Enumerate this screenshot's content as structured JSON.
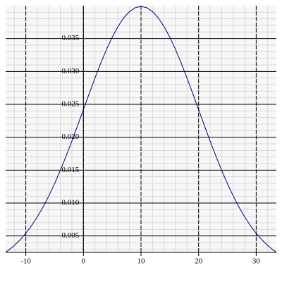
{
  "chart_data": {
    "type": "line",
    "x": [
      -13.5,
      -13,
      -12,
      -11,
      -10,
      -9,
      -8,
      -7,
      -6,
      -5,
      -4,
      -3,
      -2,
      -1,
      0,
      1,
      2,
      3,
      4,
      5,
      6,
      7,
      8,
      9,
      10,
      11,
      12,
      13,
      14,
      15,
      16,
      17,
      18,
      19,
      20,
      21,
      22,
      23,
      24,
      25,
      26,
      27,
      28,
      29,
      30,
      31,
      32,
      33,
      33.5
    ],
    "values": [
      0.00252,
      0.00283,
      0.00355,
      0.0044,
      0.0054,
      0.00656,
      0.0079,
      0.0094,
      0.01109,
      0.01295,
      0.01497,
      0.01714,
      0.01942,
      0.02179,
      0.0242,
      0.02661,
      0.02897,
      0.03123,
      0.03332,
      0.03521,
      0.03683,
      0.03814,
      0.0391,
      0.03969,
      0.03989,
      0.03969,
      0.0391,
      0.03814,
      0.03683,
      0.03521,
      0.03332,
      0.03123,
      0.02897,
      0.02661,
      0.0242,
      0.02179,
      0.01942,
      0.01714,
      0.01497,
      0.01295,
      0.01109,
      0.0094,
      0.0079,
      0.00656,
      0.0054,
      0.0044,
      0.00355,
      0.00283,
      0.00252
    ],
    "color": "#000080",
    "xlim": [
      -13.5,
      33.5
    ],
    "ylim": [
      0.0025,
      0.04
    ],
    "xticks": [
      -10,
      0,
      10,
      20,
      30
    ],
    "yticks": [
      0.005,
      {
        "value": 0.01,
        "label": "0.010"
      },
      0.015,
      {
        "value": 0.02,
        "label": "0.020"
      },
      0.025,
      {
        "value": 0.03,
        "label": "0.030"
      },
      0.035
    ],
    "grid": true,
    "minor_grid": true
  }
}
